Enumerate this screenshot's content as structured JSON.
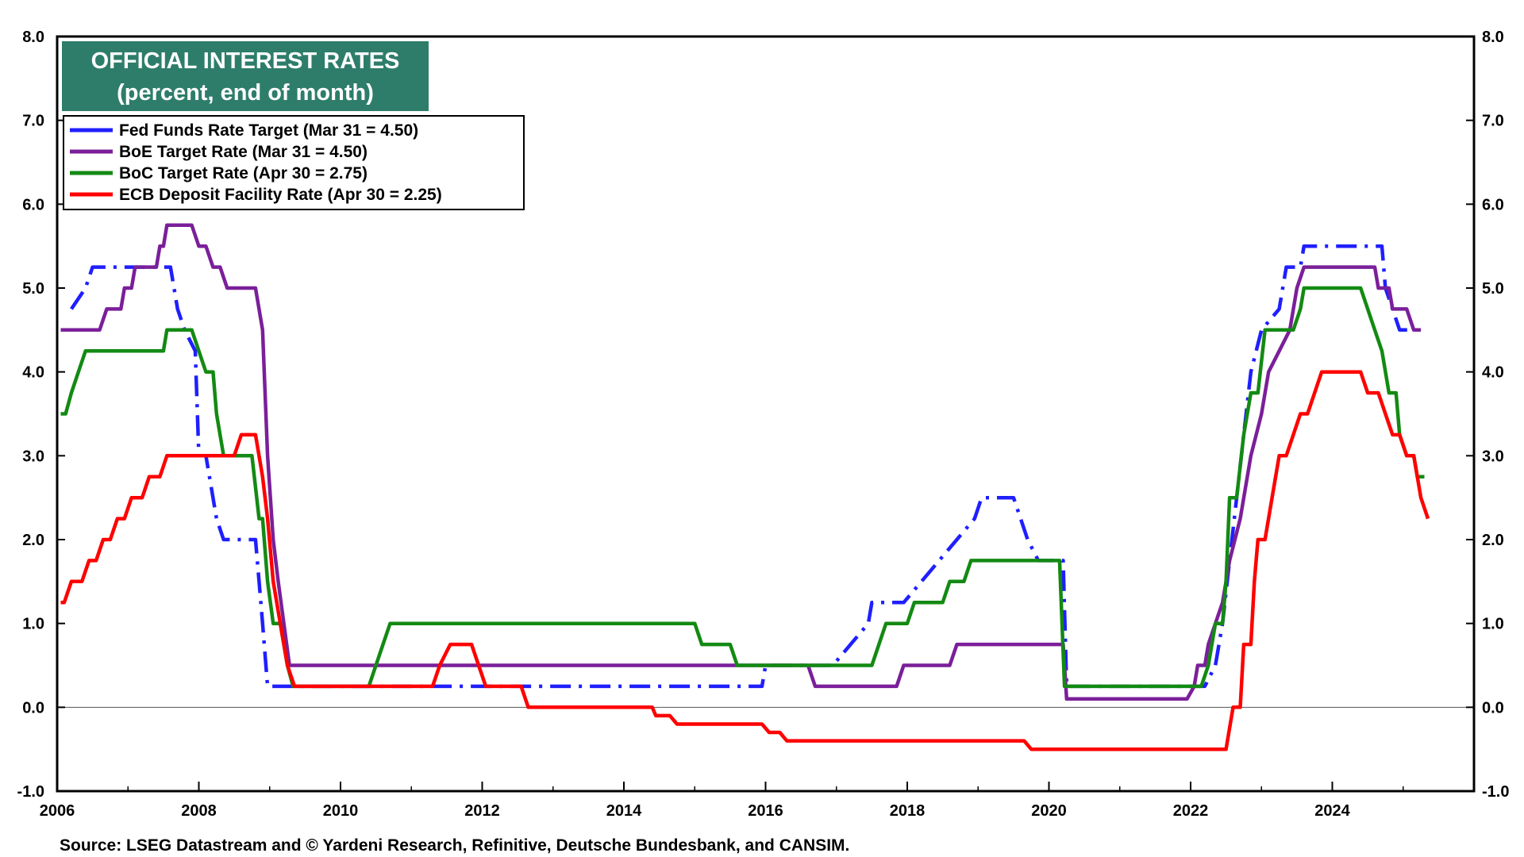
{
  "chart_data": {
    "type": "line",
    "title": "OFFICIAL INTEREST RATES",
    "subtitle": "(percent, end of month)",
    "source": "Source: LSEG Datastream and © Yardeni Research, Refinitive, Deutsche Bundesbank, and CANSIM.",
    "title_box_color": "#2e7d6b",
    "xlim": [
      2006.0,
      2026.0
    ],
    "ylim": [
      -1.0,
      8.0
    ],
    "x_ticks": [
      2006,
      2008,
      2010,
      2012,
      2014,
      2016,
      2018,
      2020,
      2022,
      2024
    ],
    "x_tick_labels": [
      "2006",
      "2008",
      "2010",
      "2012",
      "2014",
      "2016",
      "2018",
      "2020",
      "2022",
      "2024"
    ],
    "y_ticks": [
      -1,
      0,
      1,
      2,
      3,
      4,
      5,
      6,
      7,
      8
    ],
    "y_tick_labels": [
      "-1.0",
      "0.0",
      "1.0",
      "2.0",
      "3.0",
      "4.0",
      "5.0",
      "6.0",
      "7.0",
      "8.0"
    ],
    "zero_line": true,
    "grid": false,
    "legend_position": "top-left",
    "series": [
      {
        "name": "Fed Funds Rate Target (Mar 31 = 4.50)",
        "color": "#1f1fff",
        "style": "dashdot",
        "points": [
          [
            2006.2,
            4.75
          ],
          [
            2006.4,
            5.0
          ],
          [
            2006.5,
            5.25
          ],
          [
            2007.6,
            5.25
          ],
          [
            2007.7,
            4.75
          ],
          [
            2007.8,
            4.5
          ],
          [
            2007.95,
            4.25
          ],
          [
            2008.0,
            3.0
          ],
          [
            2008.1,
            3.0
          ],
          [
            2008.25,
            2.25
          ],
          [
            2008.35,
            2.0
          ],
          [
            2008.8,
            2.0
          ],
          [
            2008.85,
            1.5
          ],
          [
            2008.9,
            1.0
          ],
          [
            2008.97,
            0.25
          ],
          [
            2015.95,
            0.25
          ],
          [
            2016.0,
            0.5
          ],
          [
            2016.95,
            0.5
          ],
          [
            2017.2,
            0.75
          ],
          [
            2017.45,
            1.0
          ],
          [
            2017.5,
            1.25
          ],
          [
            2017.95,
            1.25
          ],
          [
            2018.2,
            1.5
          ],
          [
            2018.45,
            1.75
          ],
          [
            2018.7,
            2.0
          ],
          [
            2018.95,
            2.25
          ],
          [
            2019.05,
            2.5
          ],
          [
            2019.5,
            2.5
          ],
          [
            2019.6,
            2.25
          ],
          [
            2019.7,
            2.0
          ],
          [
            2019.85,
            1.75
          ],
          [
            2020.2,
            1.75
          ],
          [
            2020.25,
            0.25
          ],
          [
            2022.2,
            0.25
          ],
          [
            2022.35,
            0.5
          ],
          [
            2022.45,
            1.0
          ],
          [
            2022.55,
            1.75
          ],
          [
            2022.65,
            2.5
          ],
          [
            2022.75,
            3.25
          ],
          [
            2022.85,
            4.0
          ],
          [
            2023.0,
            4.5
          ],
          [
            2023.25,
            4.75
          ],
          [
            2023.35,
            5.25
          ],
          [
            2023.55,
            5.25
          ],
          [
            2023.6,
            5.5
          ],
          [
            2024.7,
            5.5
          ],
          [
            2024.75,
            5.0
          ],
          [
            2024.85,
            4.75
          ],
          [
            2024.95,
            4.5
          ],
          [
            2025.25,
            4.5
          ]
        ]
      },
      {
        "name": "BoE Target Rate (Mar 31 = 4.50)",
        "color": "#7b1f9a",
        "style": "solid",
        "points": [
          [
            2006.05,
            4.5
          ],
          [
            2006.6,
            4.5
          ],
          [
            2006.7,
            4.75
          ],
          [
            2006.9,
            4.75
          ],
          [
            2006.95,
            5.0
          ],
          [
            2007.05,
            5.0
          ],
          [
            2007.1,
            5.25
          ],
          [
            2007.4,
            5.25
          ],
          [
            2007.45,
            5.5
          ],
          [
            2007.5,
            5.5
          ],
          [
            2007.55,
            5.75
          ],
          [
            2007.9,
            5.75
          ],
          [
            2008.0,
            5.5
          ],
          [
            2008.1,
            5.5
          ],
          [
            2008.2,
            5.25
          ],
          [
            2008.3,
            5.25
          ],
          [
            2008.4,
            5.0
          ],
          [
            2008.8,
            5.0
          ],
          [
            2008.9,
            4.5
          ],
          [
            2008.97,
            3.0
          ],
          [
            2009.05,
            2.0
          ],
          [
            2009.12,
            1.5
          ],
          [
            2009.2,
            1.0
          ],
          [
            2009.28,
            0.5
          ],
          [
            2016.6,
            0.5
          ],
          [
            2016.7,
            0.25
          ],
          [
            2017.85,
            0.25
          ],
          [
            2017.95,
            0.5
          ],
          [
            2018.6,
            0.5
          ],
          [
            2018.7,
            0.75
          ],
          [
            2020.2,
            0.75
          ],
          [
            2020.25,
            0.1
          ],
          [
            2021.95,
            0.1
          ],
          [
            2022.05,
            0.25
          ],
          [
            2022.1,
            0.5
          ],
          [
            2022.2,
            0.5
          ],
          [
            2022.25,
            0.75
          ],
          [
            2022.35,
            1.0
          ],
          [
            2022.45,
            1.25
          ],
          [
            2022.55,
            1.75
          ],
          [
            2022.7,
            2.25
          ],
          [
            2022.85,
            3.0
          ],
          [
            2023.0,
            3.5
          ],
          [
            2023.1,
            4.0
          ],
          [
            2023.25,
            4.25
          ],
          [
            2023.4,
            4.5
          ],
          [
            2023.5,
            5.0
          ],
          [
            2023.6,
            5.25
          ],
          [
            2024.6,
            5.25
          ],
          [
            2024.65,
            5.0
          ],
          [
            2024.8,
            5.0
          ],
          [
            2024.85,
            4.75
          ],
          [
            2025.05,
            4.75
          ],
          [
            2025.15,
            4.5
          ],
          [
            2025.25,
            4.5
          ]
        ]
      },
      {
        "name": "BoC Target Rate (Apr 30 = 2.75)",
        "color": "#138a13",
        "style": "solid",
        "points": [
          [
            2006.05,
            3.5
          ],
          [
            2006.12,
            3.5
          ],
          [
            2006.2,
            3.75
          ],
          [
            2006.3,
            4.0
          ],
          [
            2006.4,
            4.25
          ],
          [
            2007.5,
            4.25
          ],
          [
            2007.55,
            4.5
          ],
          [
            2007.9,
            4.5
          ],
          [
            2008.0,
            4.25
          ],
          [
            2008.1,
            4.0
          ],
          [
            2008.2,
            4.0
          ],
          [
            2008.25,
            3.5
          ],
          [
            2008.35,
            3.0
          ],
          [
            2008.75,
            3.0
          ],
          [
            2008.85,
            2.25
          ],
          [
            2008.9,
            2.25
          ],
          [
            2008.97,
            1.5
          ],
          [
            2009.05,
            1.0
          ],
          [
            2009.15,
            1.0
          ],
          [
            2009.25,
            0.5
          ],
          [
            2009.33,
            0.25
          ],
          [
            2010.4,
            0.25
          ],
          [
            2010.5,
            0.5
          ],
          [
            2010.6,
            0.75
          ],
          [
            2010.7,
            1.0
          ],
          [
            2015.0,
            1.0
          ],
          [
            2015.1,
            0.75
          ],
          [
            2015.5,
            0.75
          ],
          [
            2015.6,
            0.5
          ],
          [
            2017.5,
            0.5
          ],
          [
            2017.6,
            0.75
          ],
          [
            2017.7,
            1.0
          ],
          [
            2018.0,
            1.0
          ],
          [
            2018.1,
            1.25
          ],
          [
            2018.5,
            1.25
          ],
          [
            2018.6,
            1.5
          ],
          [
            2018.8,
            1.5
          ],
          [
            2018.9,
            1.75
          ],
          [
            2020.15,
            1.75
          ],
          [
            2020.22,
            0.25
          ],
          [
            2022.15,
            0.25
          ],
          [
            2022.25,
            0.5
          ],
          [
            2022.35,
            1.0
          ],
          [
            2022.45,
            1.0
          ],
          [
            2022.5,
            1.5
          ],
          [
            2022.55,
            2.5
          ],
          [
            2022.65,
            2.5
          ],
          [
            2022.75,
            3.25
          ],
          [
            2022.85,
            3.75
          ],
          [
            2022.95,
            3.75
          ],
          [
            2023.05,
            4.5
          ],
          [
            2023.45,
            4.5
          ],
          [
            2023.55,
            4.75
          ],
          [
            2023.6,
            5.0
          ],
          [
            2024.4,
            5.0
          ],
          [
            2024.5,
            4.75
          ],
          [
            2024.6,
            4.5
          ],
          [
            2024.7,
            4.25
          ],
          [
            2024.8,
            3.75
          ],
          [
            2024.9,
            3.75
          ],
          [
            2024.95,
            3.25
          ],
          [
            2025.05,
            3.0
          ],
          [
            2025.15,
            3.0
          ],
          [
            2025.2,
            2.75
          ],
          [
            2025.3,
            2.75
          ]
        ]
      },
      {
        "name": "ECB Deposit Facility Rate (Apr 30 = 2.25)",
        "color": "#ff0000",
        "style": "solid",
        "points": [
          [
            2006.05,
            1.25
          ],
          [
            2006.1,
            1.25
          ],
          [
            2006.2,
            1.5
          ],
          [
            2006.35,
            1.5
          ],
          [
            2006.45,
            1.75
          ],
          [
            2006.55,
            1.75
          ],
          [
            2006.65,
            2.0
          ],
          [
            2006.75,
            2.0
          ],
          [
            2006.85,
            2.25
          ],
          [
            2006.95,
            2.25
          ],
          [
            2007.05,
            2.5
          ],
          [
            2007.2,
            2.5
          ],
          [
            2007.3,
            2.75
          ],
          [
            2007.45,
            2.75
          ],
          [
            2007.55,
            3.0
          ],
          [
            2008.5,
            3.0
          ],
          [
            2008.6,
            3.25
          ],
          [
            2008.8,
            3.25
          ],
          [
            2008.9,
            2.75
          ],
          [
            2008.97,
            2.25
          ],
          [
            2009.05,
            1.5
          ],
          [
            2009.15,
            1.0
          ],
          [
            2009.25,
            0.5
          ],
          [
            2009.35,
            0.25
          ],
          [
            2011.3,
            0.25
          ],
          [
            2011.4,
            0.5
          ],
          [
            2011.55,
            0.75
          ],
          [
            2011.85,
            0.75
          ],
          [
            2011.95,
            0.5
          ],
          [
            2012.05,
            0.25
          ],
          [
            2012.55,
            0.25
          ],
          [
            2012.65,
            0.0
          ],
          [
            2014.4,
            0.0
          ],
          [
            2014.45,
            -0.1
          ],
          [
            2014.65,
            -0.1
          ],
          [
            2014.75,
            -0.2
          ],
          [
            2015.95,
            -0.2
          ],
          [
            2016.05,
            -0.3
          ],
          [
            2016.2,
            -0.3
          ],
          [
            2016.3,
            -0.4
          ],
          [
            2019.65,
            -0.4
          ],
          [
            2019.75,
            -0.5
          ],
          [
            2022.5,
            -0.5
          ],
          [
            2022.6,
            0.0
          ],
          [
            2022.7,
            0.0
          ],
          [
            2022.75,
            0.75
          ],
          [
            2022.85,
            0.75
          ],
          [
            2022.9,
            1.5
          ],
          [
            2022.95,
            2.0
          ],
          [
            2023.05,
            2.0
          ],
          [
            2023.15,
            2.5
          ],
          [
            2023.25,
            3.0
          ],
          [
            2023.35,
            3.0
          ],
          [
            2023.45,
            3.25
          ],
          [
            2023.55,
            3.5
          ],
          [
            2023.65,
            3.5
          ],
          [
            2023.75,
            3.75
          ],
          [
            2023.85,
            4.0
          ],
          [
            2024.4,
            4.0
          ],
          [
            2024.5,
            3.75
          ],
          [
            2024.65,
            3.75
          ],
          [
            2024.75,
            3.5
          ],
          [
            2024.85,
            3.25
          ],
          [
            2024.95,
            3.25
          ],
          [
            2025.05,
            3.0
          ],
          [
            2025.15,
            3.0
          ],
          [
            2025.25,
            2.5
          ],
          [
            2025.35,
            2.25
          ]
        ]
      }
    ]
  }
}
